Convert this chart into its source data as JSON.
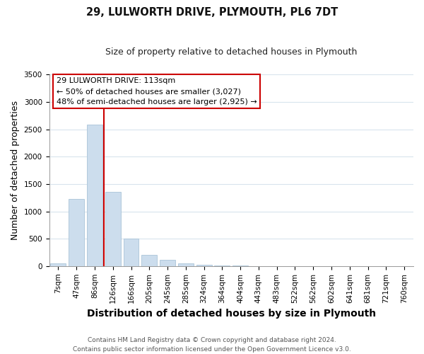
{
  "title": "29, LULWORTH DRIVE, PLYMOUTH, PL6 7DT",
  "subtitle": "Size of property relative to detached houses in Plymouth",
  "xlabel": "Distribution of detached houses by size in Plymouth",
  "ylabel": "Number of detached properties",
  "bar_labels": [
    "7sqm",
    "47sqm",
    "86sqm",
    "126sqm",
    "166sqm",
    "205sqm",
    "245sqm",
    "285sqm",
    "324sqm",
    "364sqm",
    "404sqm",
    "443sqm",
    "483sqm",
    "522sqm",
    "562sqm",
    "602sqm",
    "641sqm",
    "681sqm",
    "721sqm",
    "760sqm"
  ],
  "bar_values": [
    50,
    1230,
    2590,
    1350,
    500,
    200,
    110,
    50,
    30,
    10,
    5,
    2,
    2,
    0,
    0,
    0,
    0,
    0,
    0,
    0
  ],
  "bar_color": "#ccdded",
  "bar_edge_color": "#aac4d8",
  "vline_color": "#cc0000",
  "vline_position": 2.5,
  "ylim": [
    0,
    3500
  ],
  "yticks": [
    0,
    500,
    1000,
    1500,
    2000,
    2500,
    3000,
    3500
  ],
  "annotation_title": "29 LULWORTH DRIVE: 113sqm",
  "annotation_line1": "← 50% of detached houses are smaller (3,027)",
  "annotation_line2": "48% of semi-detached houses are larger (2,925) →",
  "annotation_box_facecolor": "#ffffff",
  "annotation_box_edgecolor": "#cc0000",
  "footer_line1": "Contains HM Land Registry data © Crown copyright and database right 2024.",
  "footer_line2": "Contains public sector information licensed under the Open Government Licence v3.0.",
  "bg_color": "#ffffff",
  "grid_color": "#d8e4ed",
  "title_fontsize": 10.5,
  "subtitle_fontsize": 9,
  "axis_label_fontsize": 9,
  "tick_fontsize": 7.5,
  "annotation_fontsize": 8,
  "footer_fontsize": 6.5
}
